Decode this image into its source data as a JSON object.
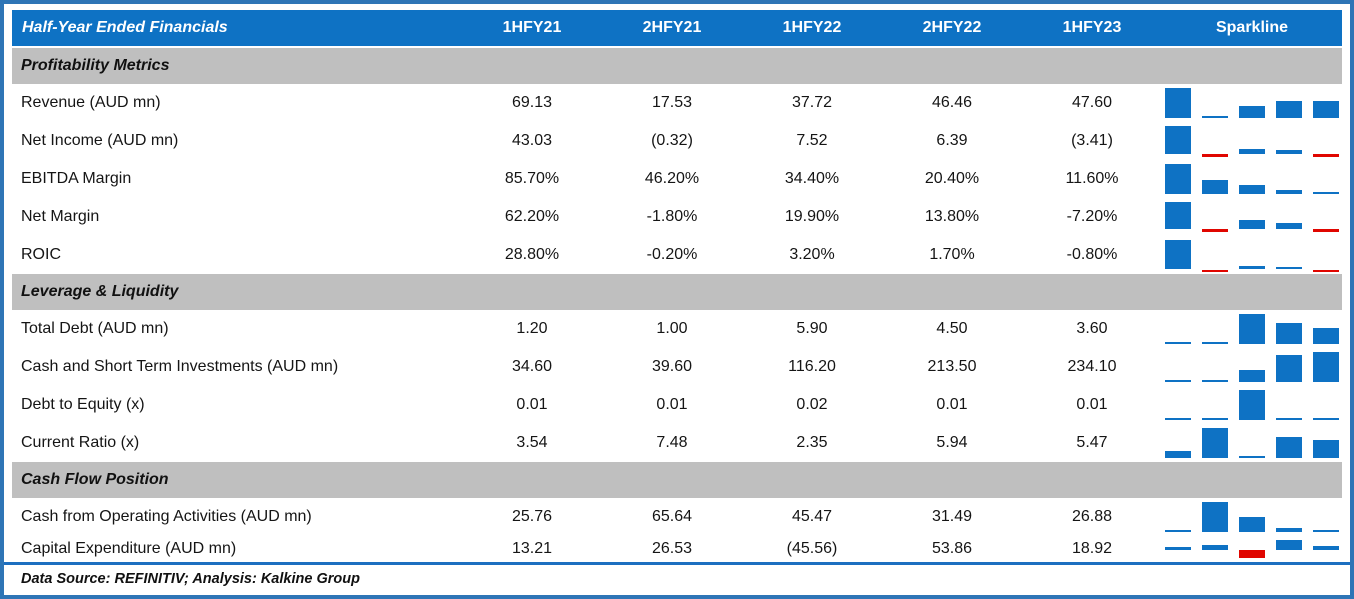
{
  "chart_data": {
    "type": "table",
    "title": "Half-Year Ended Financials",
    "period_columns": [
      "1HFY21",
      "2HFY21",
      "1HFY22",
      "2HFY22",
      "1HFY23"
    ],
    "sparkline_column": "Sparkline",
    "sparkline_style": {
      "type": "column",
      "positive_color": "#0E72C4",
      "negative_color": "#E00600",
      "scaling": "per-row min-max, zero baseline when negatives present"
    },
    "sections": [
      {
        "title": "Profitability Metrics",
        "rows": [
          {
            "label": "Revenue (AUD mn)",
            "display": [
              "69.13",
              "17.53",
              "37.72",
              "46.46",
              "47.60"
            ],
            "values": [
              69.13,
              17.53,
              37.72,
              46.46,
              47.6
            ]
          },
          {
            "label": "Net Income (AUD mn)",
            "display": [
              "43.03",
              "(0.32)",
              "7.52",
              "6.39",
              "(3.41)"
            ],
            "values": [
              43.03,
              -0.32,
              7.52,
              6.39,
              -3.41
            ]
          },
          {
            "label": "EBITDA Margin",
            "display": [
              "85.70%",
              "46.20%",
              "34.40%",
              "20.40%",
              "11.60%"
            ],
            "values": [
              85.7,
              46.2,
              34.4,
              20.4,
              11.6
            ]
          },
          {
            "label": "Net Margin",
            "display": [
              "62.20%",
              "-1.80%",
              "19.90%",
              "13.80%",
              "-7.20%"
            ],
            "values": [
              62.2,
              -1.8,
              19.9,
              13.8,
              -7.2
            ]
          },
          {
            "label": "ROIC",
            "display": [
              "28.80%",
              "-0.20%",
              "3.20%",
              "1.70%",
              "-0.80%"
            ],
            "values": [
              28.8,
              -0.2,
              3.2,
              1.7,
              -0.8
            ]
          }
        ]
      },
      {
        "title": "Leverage & Liquidity",
        "rows": [
          {
            "label": "Total Debt (AUD mn)",
            "display": [
              "1.20",
              "1.00",
              "5.90",
              "4.50",
              "3.60"
            ],
            "values": [
              1.2,
              1.0,
              5.9,
              4.5,
              3.6
            ]
          },
          {
            "label": "Cash and Short Term Investments (AUD mn)",
            "display": [
              "34.60",
              "39.60",
              "116.20",
              "213.50",
              "234.10"
            ],
            "values": [
              34.6,
              39.6,
              116.2,
              213.5,
              234.1
            ]
          },
          {
            "label": "Debt to Equity (x)",
            "display": [
              "0.01",
              "0.01",
              "0.02",
              "0.01",
              "0.01"
            ],
            "values": [
              0.01,
              0.01,
              0.02,
              0.01,
              0.01
            ]
          },
          {
            "label": "Current Ratio (x)",
            "display": [
              "3.54",
              "7.48",
              "2.35",
              "5.94",
              "5.47"
            ],
            "values": [
              3.54,
              7.48,
              2.35,
              5.94,
              5.47
            ]
          }
        ]
      },
      {
        "title": "Cash Flow Position",
        "rows": [
          {
            "label": "Cash from Operating Activities (AUD mn)",
            "display": [
              "25.76",
              "65.64",
              "45.47",
              "31.49",
              "26.88"
            ],
            "values": [
              25.76,
              65.64,
              45.47,
              31.49,
              26.88
            ]
          },
          {
            "label": "Capital Expenditure (AUD mn)",
            "display": [
              "13.21",
              "26.53",
              "(45.56)",
              "53.86",
              "18.92"
            ],
            "values": [
              13.21,
              26.53,
              -45.56,
              53.86,
              18.92
            ]
          }
        ]
      }
    ]
  },
  "footer": {
    "text": "Data Source: REFINITIV; Analysis: Kalkine Group"
  },
  "colors": {
    "header_blue": "#0E72C4",
    "band_gray": "#BFBFBF",
    "spark_positive": "#0E72C4",
    "spark_negative": "#E00600",
    "frame_border": "#2E75B6",
    "rule_blue": "#1D6FC0"
  }
}
